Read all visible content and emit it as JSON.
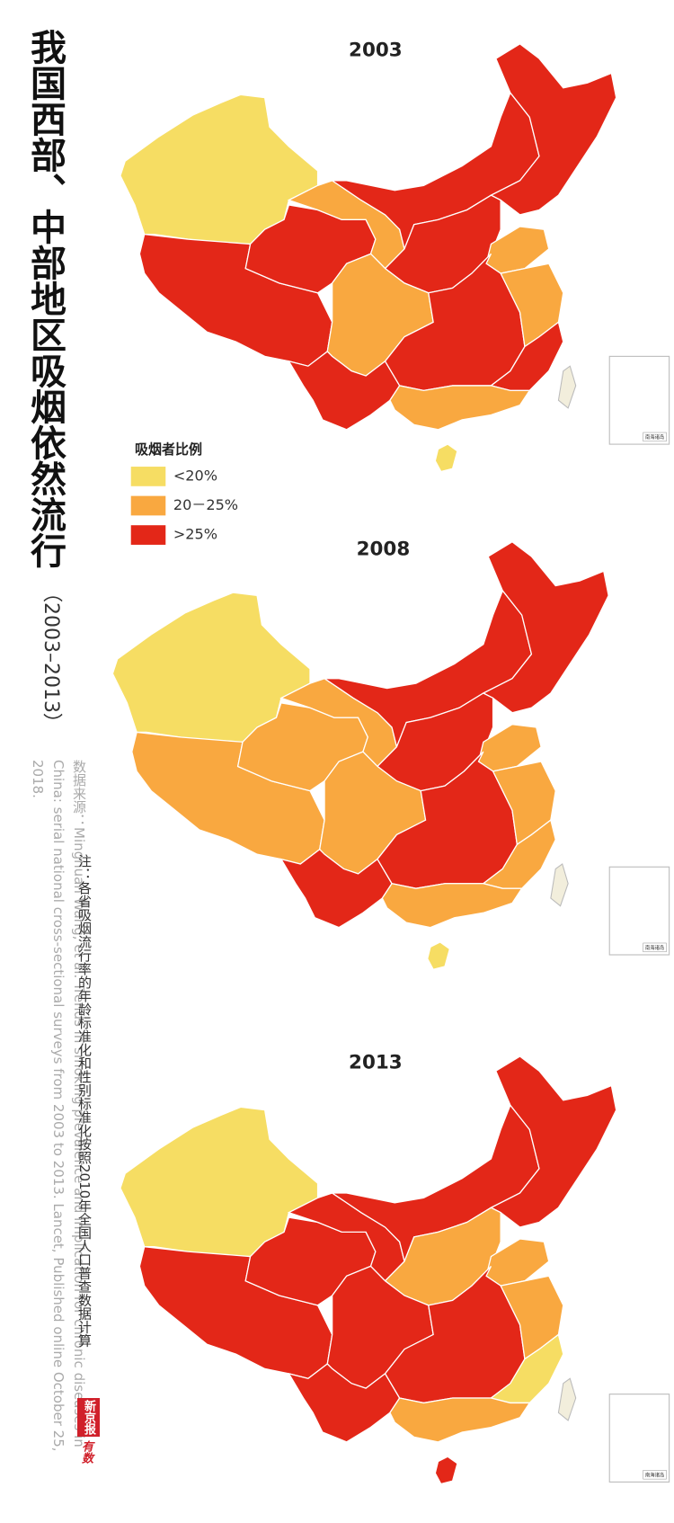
{
  "title": "我国西部、中部地区吸烟依然流行",
  "subtitle": "（2003–2013）",
  "legend": {
    "title": "吸烟者比例",
    "items": [
      {
        "label": "<20%",
        "color": "#f6dd63"
      },
      {
        "label": "20－25%",
        "color": "#f9a840"
      },
      {
        "label": ">25%",
        "color": "#e32718"
      }
    ]
  },
  "maps": [
    {
      "year": "2003",
      "regions": [
        0,
        2,
        2,
        1,
        2,
        2,
        2,
        1,
        1,
        2,
        2,
        1,
        2,
        1,
        0
      ]
    },
    {
      "year": "2008",
      "regions": [
        0,
        1,
        1,
        1,
        2,
        2,
        2,
        1,
        1,
        2,
        2,
        1,
        1,
        1,
        0
      ]
    },
    {
      "year": "2013",
      "regions": [
        0,
        2,
        2,
        2,
        2,
        2,
        1,
        1,
        2,
        2,
        2,
        1,
        0,
        1,
        2
      ]
    }
  ],
  "inset_label": "南海诸岛",
  "source": "数据来源：Minghuan Wang, et al. Trends in smoking prevalence and implication for chronic diseases in China: serial national cross-sectional surveys from 2003 to 2013. Lancet, Published online October 25, 2018.",
  "note": "注：各省吸烟流行率的年龄标准化和性别标准化按照2010年全国人口普查数据计算",
  "logo": {
    "brand": "新京报",
    "product": "有数"
  }
}
